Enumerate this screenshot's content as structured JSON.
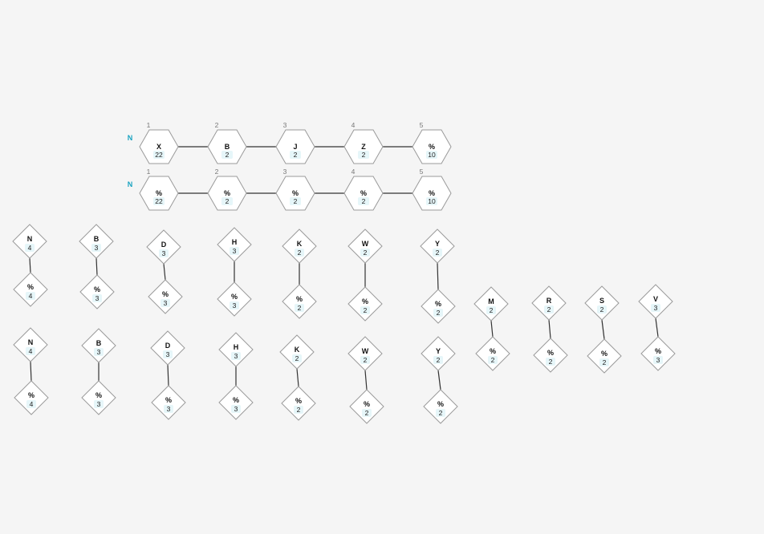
{
  "colors": {
    "background": "#f5f5f5",
    "node_fill": "#ffffff",
    "node_stroke": "#9a9a9a",
    "edge": "#333333",
    "row_label": "#17a2c0",
    "count_badge": "#e6f6f9"
  },
  "hex_rows": [
    {
      "label": "N",
      "nodes": [
        {
          "pos": "1",
          "label": "X",
          "count": "22"
        },
        {
          "pos": "2",
          "label": "B",
          "count": "2"
        },
        {
          "pos": "3",
          "label": "J",
          "count": "2"
        },
        {
          "pos": "4",
          "label": "Z",
          "count": "2"
        },
        {
          "pos": "5",
          "label": "%",
          "count": "10"
        }
      ]
    },
    {
      "label": "N",
      "nodes": [
        {
          "pos": "1",
          "label": "%",
          "count": "22"
        },
        {
          "pos": "2",
          "label": "%",
          "count": "2"
        },
        {
          "pos": "3",
          "label": "%",
          "count": "2"
        },
        {
          "pos": "4",
          "label": "%",
          "count": "2"
        },
        {
          "pos": "5",
          "label": "%",
          "count": "10"
        }
      ]
    }
  ],
  "diamond_pairs": [
    {
      "top": {
        "label": "N",
        "count": "4"
      },
      "bottom": {
        "label": "%",
        "count": "4"
      }
    },
    {
      "top": {
        "label": "B",
        "count": "3"
      },
      "bottom": {
        "label": "%",
        "count": "3"
      }
    },
    {
      "top": {
        "label": "D",
        "count": "3"
      },
      "bottom": {
        "label": "%",
        "count": "3"
      }
    },
    {
      "top": {
        "label": "H",
        "count": "3"
      },
      "bottom": {
        "label": "%",
        "count": "3"
      }
    },
    {
      "top": {
        "label": "K",
        "count": "2"
      },
      "bottom": {
        "label": "%",
        "count": "2"
      }
    },
    {
      "top": {
        "label": "W",
        "count": "2"
      },
      "bottom": {
        "label": "%",
        "count": "2"
      }
    },
    {
      "top": {
        "label": "Y",
        "count": "2"
      },
      "bottom": {
        "label": "%",
        "count": "2"
      }
    },
    {
      "top": {
        "label": "N",
        "count": "4"
      },
      "bottom": {
        "label": "%",
        "count": "4"
      }
    },
    {
      "top": {
        "label": "B",
        "count": "3"
      },
      "bottom": {
        "label": "%",
        "count": "3"
      }
    },
    {
      "top": {
        "label": "D",
        "count": "3"
      },
      "bottom": {
        "label": "%",
        "count": "3"
      }
    },
    {
      "top": {
        "label": "H",
        "count": "3"
      },
      "bottom": {
        "label": "%",
        "count": "3"
      }
    },
    {
      "top": {
        "label": "K",
        "count": "2"
      },
      "bottom": {
        "label": "%",
        "count": "2"
      }
    },
    {
      "top": {
        "label": "W",
        "count": "2"
      },
      "bottom": {
        "label": "%",
        "count": "2"
      }
    },
    {
      "top": {
        "label": "Y",
        "count": "2"
      },
      "bottom": {
        "label": "%",
        "count": "2"
      }
    },
    {
      "top": {
        "label": "M",
        "count": "2"
      },
      "bottom": {
        "label": "%",
        "count": "2"
      }
    },
    {
      "top": {
        "label": "R",
        "count": "2"
      },
      "bottom": {
        "label": "%",
        "count": "2"
      }
    },
    {
      "top": {
        "label": "S",
        "count": "2"
      },
      "bottom": {
        "label": "%",
        "count": "2"
      }
    },
    {
      "top": {
        "label": "V",
        "count": "3"
      },
      "bottom": {
        "label": "%",
        "count": "3"
      }
    }
  ]
}
